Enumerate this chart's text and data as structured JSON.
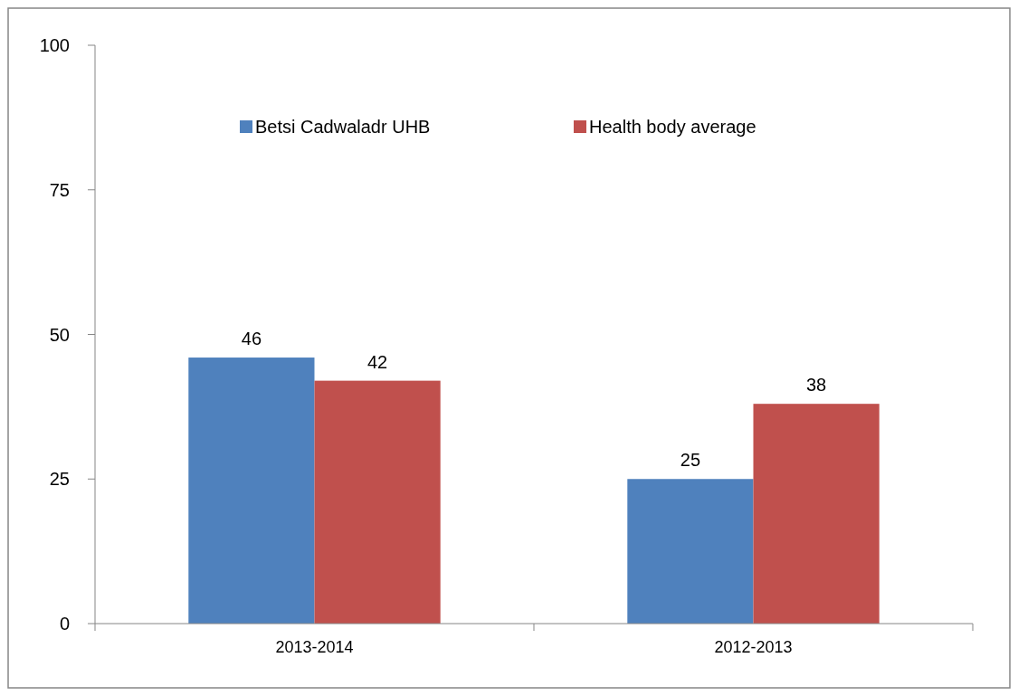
{
  "chart_data": {
    "type": "bar",
    "categories": [
      "2013-2014",
      "2012-2013"
    ],
    "series": [
      {
        "name": "Betsi Cadwaladr UHB",
        "color": "#4f81bd",
        "values": [
          46,
          25
        ]
      },
      {
        "name": "Health body average",
        "color": "#c0504d",
        "values": [
          42,
          38
        ]
      }
    ],
    "ylim": [
      0,
      100
    ],
    "yticks": [
      0,
      25,
      50,
      75,
      100
    ],
    "data_labels": true,
    "legend": "top",
    "grid": false
  }
}
